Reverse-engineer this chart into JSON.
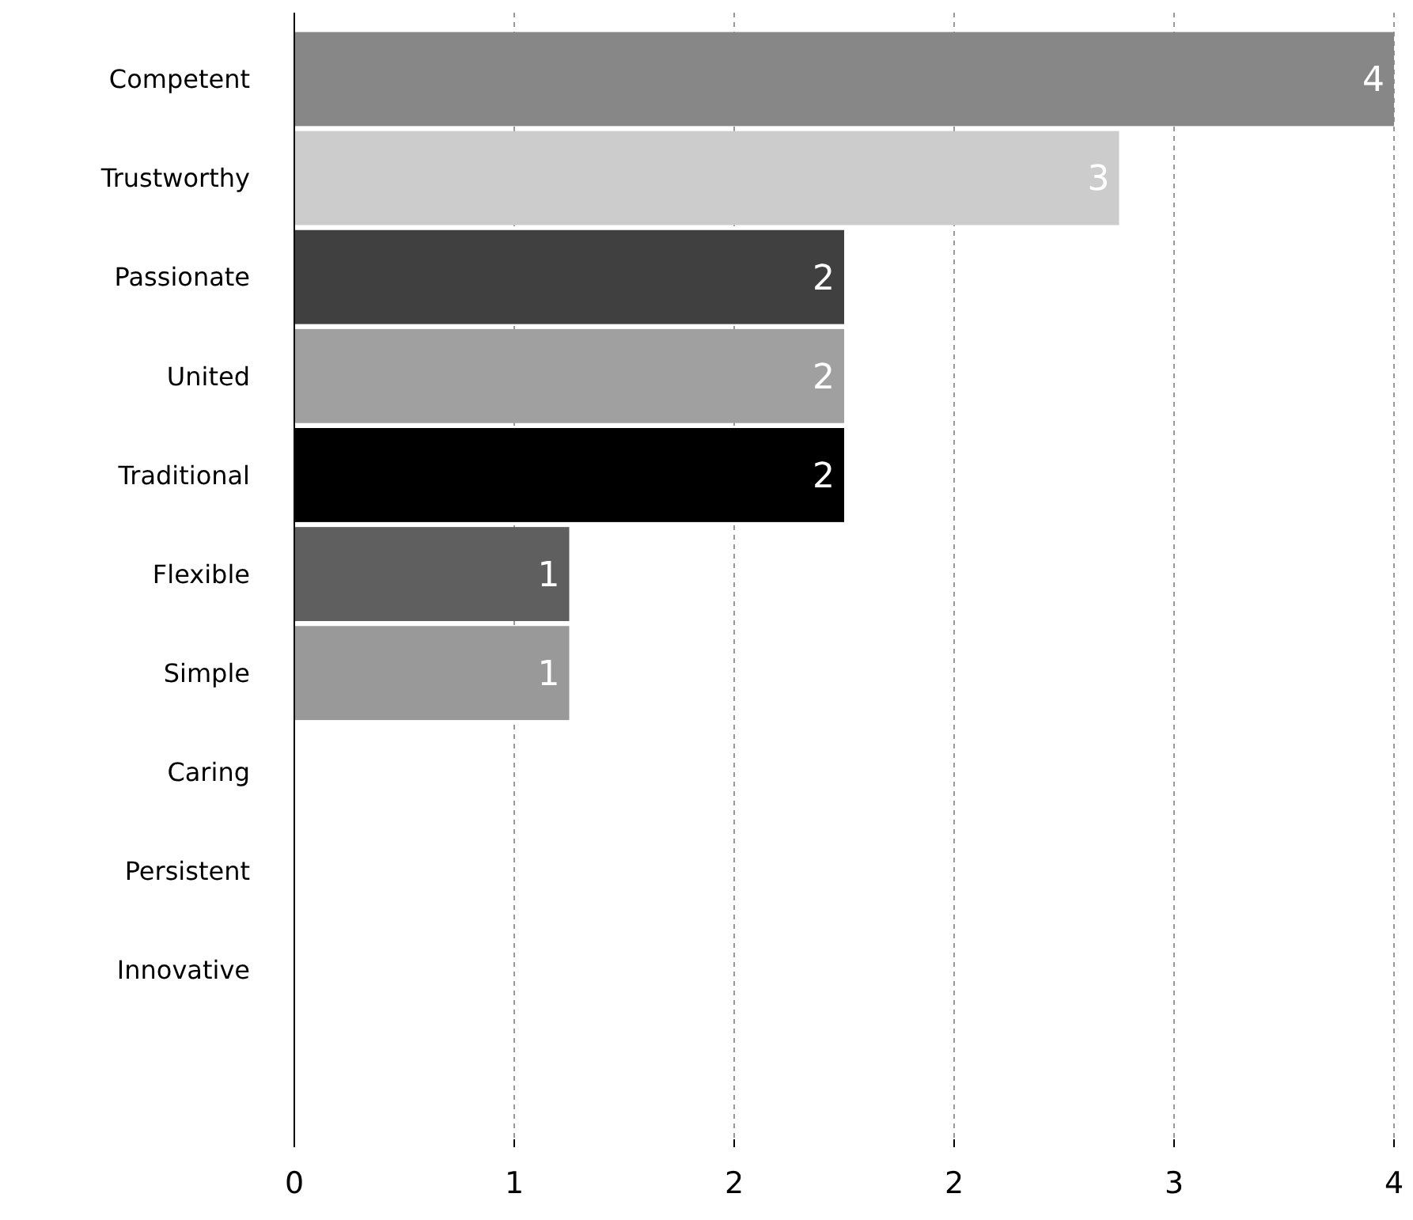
{
  "chart_data": {
    "type": "bar",
    "orientation": "horizontal",
    "categories": [
      "Competent",
      "Trustworthy",
      "Passionate",
      "United",
      "Traditional",
      "Flexible",
      "Simple",
      "Caring",
      "Persistent",
      "Innovative"
    ],
    "values": [
      4,
      3,
      2,
      2,
      2,
      1,
      1,
      0,
      0,
      0
    ],
    "colors": [
      "#878787",
      "#cccccc",
      "#404040",
      "#a0a0a0",
      "#000000",
      "#5f5f5f",
      "#999999",
      "#878787",
      "#878787",
      "#878787"
    ],
    "value_labels": [
      "4",
      "3",
      "2",
      "2",
      "2",
      "1",
      "1",
      null,
      null,
      null
    ],
    "xlim": [
      0,
      4
    ],
    "xticks": [
      0,
      {
        "value": 0.8,
        "label": "1"
      },
      {
        "value": 1.6,
        "label": "2"
      },
      {
        "value": 2.4,
        "label": "2"
      },
      {
        "value": 3.2,
        "label": "3"
      },
      4
    ],
    "grid": "x"
  }
}
